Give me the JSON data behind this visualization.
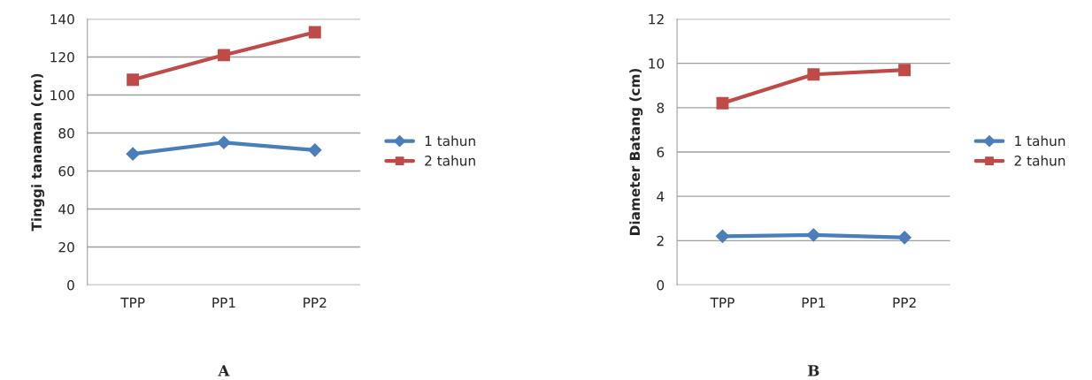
{
  "chart_data": [
    {
      "type": "line",
      "ylabel": "Tinggi tanaman (cm)",
      "categories": [
        "TPP",
        "PP1",
        "PP2"
      ],
      "ylim": [
        0,
        140
      ],
      "yticks": [
        0,
        20,
        40,
        60,
        80,
        100,
        120,
        140
      ],
      "grid": "y",
      "legend": "right",
      "annotations": [
        "A"
      ],
      "series": [
        {
          "name": "1 tahun",
          "color": "#4a7ebb",
          "marker": "diamond",
          "values": [
            69,
            75,
            71
          ]
        },
        {
          "name": "2 tahun",
          "color": "#be4b48",
          "marker": "square",
          "values": [
            108,
            121,
            133
          ]
        }
      ]
    },
    {
      "type": "line",
      "ylabel": "Diameter Batang (cm)",
      "categories": [
        "TPP",
        "PP1",
        "PP2"
      ],
      "ylim": [
        0,
        12
      ],
      "yticks": [
        0,
        2,
        4,
        6,
        8,
        10,
        12
      ],
      "grid": "y",
      "legend": "right",
      "annotations": [
        "B"
      ],
      "series": [
        {
          "name": "1 tahun",
          "color": "#4a7ebb",
          "marker": "diamond",
          "values": [
            2.2,
            2.26,
            2.14
          ]
        },
        {
          "name": "2 tahun",
          "color": "#be4b48",
          "marker": "square",
          "values": [
            8.2,
            9.5,
            9.7
          ]
        }
      ]
    }
  ]
}
